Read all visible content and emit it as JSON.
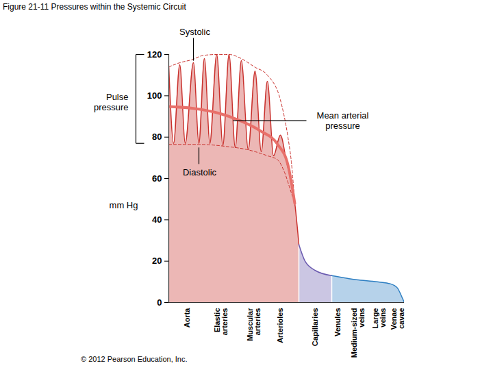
{
  "chart_data": {
    "type": "area",
    "title": "Figure 21-11 Pressures within the Systemic Circuit",
    "ylabel": "mm Hg",
    "categories": [
      "Aorta",
      "Elastic arteries",
      "Muscular arteries",
      "Arterioles",
      "Capillaries",
      "Venules",
      "Medium-sized veins",
      "Large veins",
      "Venae cavae"
    ],
    "category_positions": [
      27,
      76,
      124,
      163,
      214,
      247,
      276,
      307,
      334
    ],
    "xlim": [
      0,
      344
    ],
    "ylim": [
      0,
      120
    ],
    "yticks": [
      0,
      20,
      40,
      60,
      80,
      100,
      120
    ],
    "series": [
      {
        "type": "area",
        "color": "#c9302c",
        "x": [
          0,
          7,
          16,
          24,
          36,
          44,
          52,
          60,
          70,
          79,
          88,
          97,
          106,
          116,
          126,
          135,
          144,
          153,
          163,
          172,
          179,
          184,
          190
        ],
        "values": [
          114,
          77,
          115,
          77,
          116,
          77,
          118,
          77,
          120,
          76,
          120,
          75,
          117,
          74,
          112,
          73,
          107,
          71,
          81,
          68,
          58,
          48,
          28
        ]
      },
      {
        "type": "area",
        "color": "#6b5bb0",
        "x": [
          190,
          199,
          214,
          238
        ],
        "values": [
          28,
          20,
          15.5,
          13
        ]
      },
      {
        "type": "area",
        "color": "#2e7fc2",
        "x": [
          238,
          274,
          304,
          324,
          334,
          340,
          344
        ],
        "values": [
          13,
          11,
          10,
          9,
          7,
          3,
          0
        ]
      },
      {
        "type": "line",
        "line_style": "dashed",
        "color": "#c9302c",
        "x": [
          0,
          16,
          34,
          50,
          70,
          88,
          106,
          125,
          144,
          163,
          174,
          179,
          184
        ],
        "values": [
          114,
          116,
          117.5,
          119.5,
          120,
          120,
          118,
          114,
          110,
          98,
          80,
          68,
          48
        ]
      },
      {
        "type": "line",
        "line_style": "dashed",
        "color": "#c9302c",
        "x": [
          0,
          44,
          84,
          114,
          144,
          159,
          169,
          179,
          184
        ],
        "values": [
          76.5,
          76.5,
          75.5,
          74,
          71,
          69,
          63,
          53,
          48
        ]
      },
      {
        "type": "line",
        "line_style": "solid",
        "color": "#e8706a",
        "x": [
          0,
          34,
          74,
          104,
          134,
          159,
          174,
          184
        ],
        "values": [
          94.8,
          94,
          91.5,
          88,
          83,
          76.5,
          66.6,
          48
        ]
      }
    ],
    "annotations": [
      {
        "text": "Systolic",
        "x": 38,
        "y": 131,
        "line": [
          36,
          128,
          36,
          117
        ]
      },
      {
        "text": "Diastolic",
        "x": 45,
        "y": 63,
        "line": [
          44,
          67,
          44,
          75
        ]
      },
      {
        "text": "Mean arterial\npressure",
        "x": 254,
        "y": 88,
        "line": [
          201,
          88,
          94,
          88
        ]
      },
      {
        "text": "Pulse\npressure",
        "x": -59,
        "y": 97,
        "bracket": [
          -48,
          77,
          120
        ]
      }
    ],
    "copyright": "© 2012 Pearson Education, Inc."
  }
}
